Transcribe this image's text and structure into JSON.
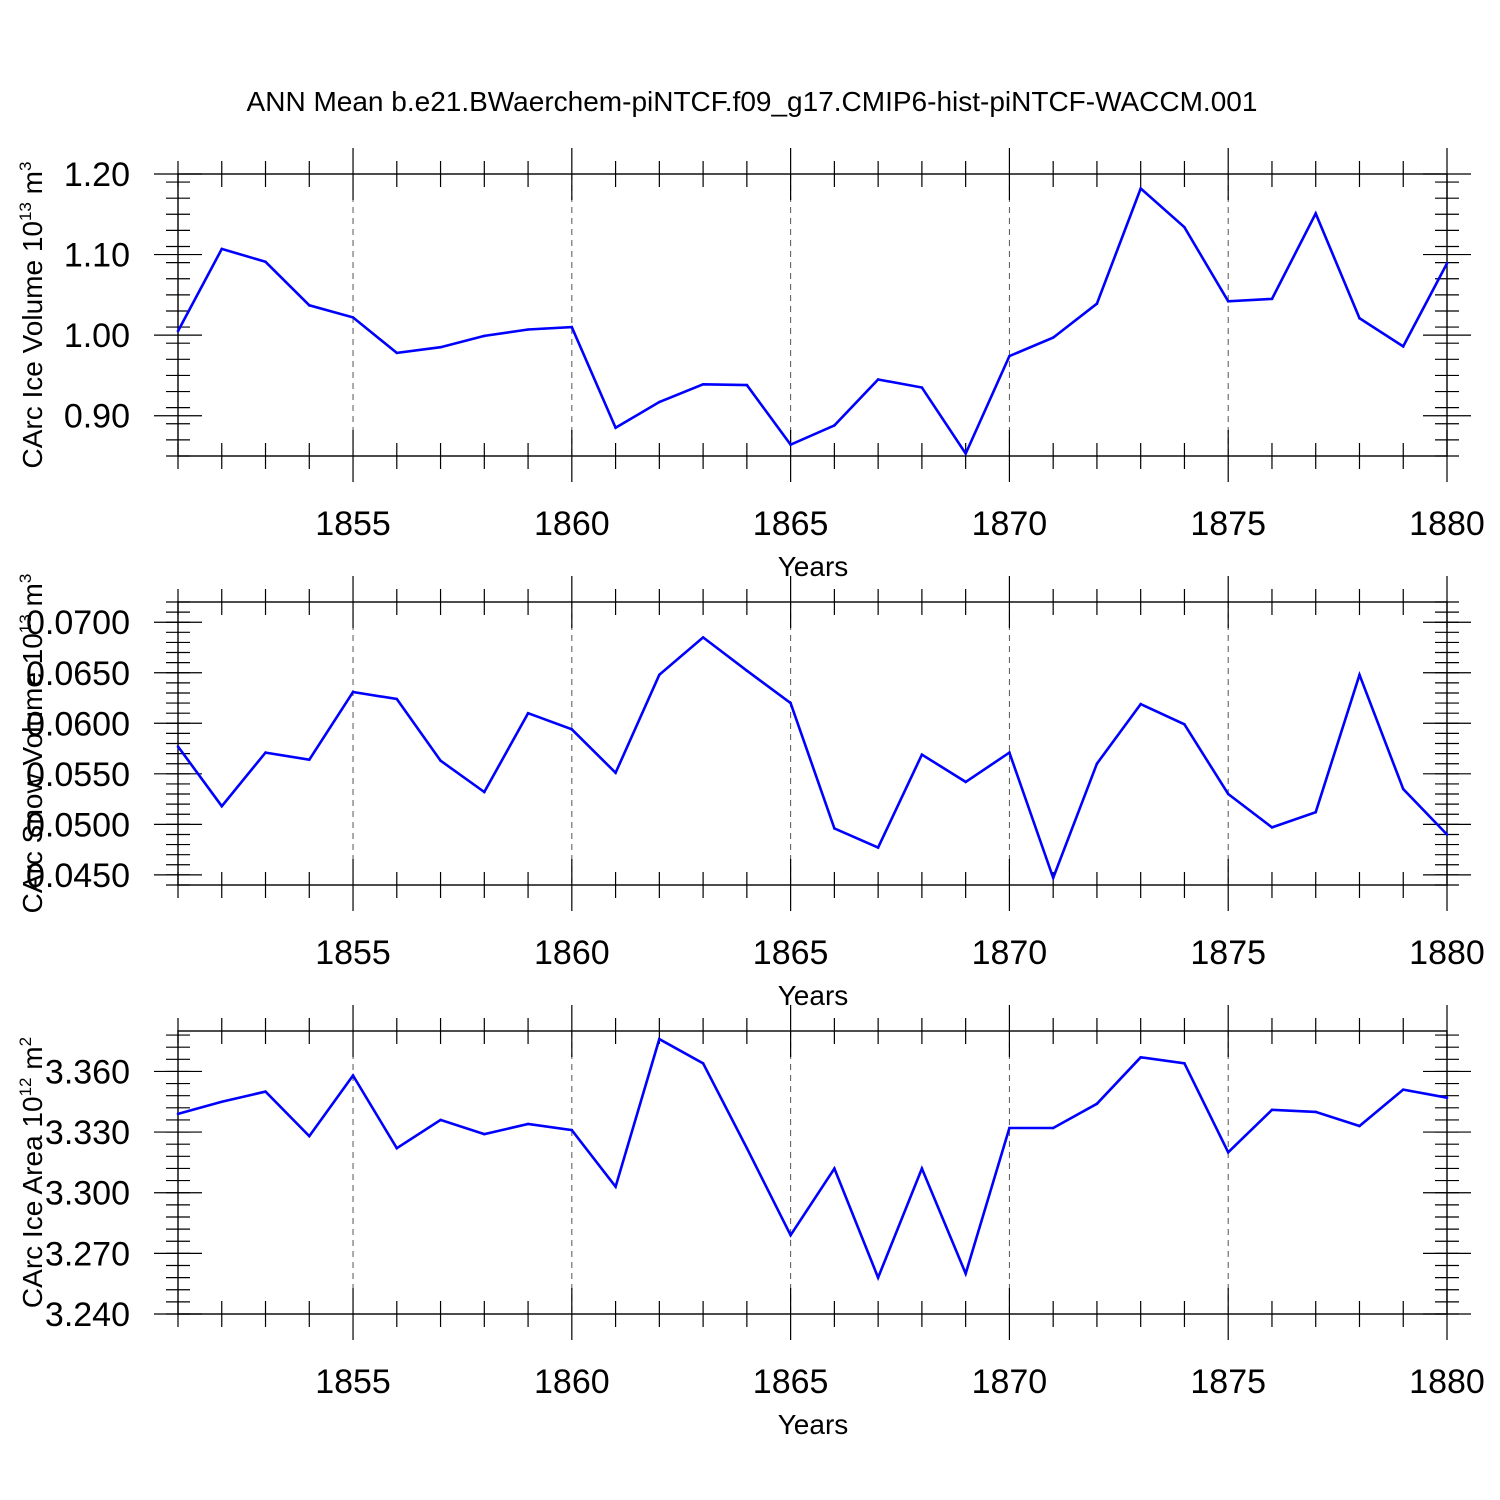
{
  "title": "ANN Mean b.e21.BWaerchem-piNTCF.f09_g17.CMIP6-hist-piNTCF-WACCM.001",
  "line_color": "#0000ff",
  "chart_data": [
    {
      "type": "line",
      "ylabel": "CArc Ice Volume 10",
      "ylabel_exp": "13",
      "ylabel_unit": " m",
      "ylabel_unit_exp": "3",
      "xlabel": "Years",
      "xlim": [
        1851,
        1880
      ],
      "ylim": [
        0.85,
        1.2
      ],
      "yticks": [
        0.9,
        1.0,
        1.1,
        1.2
      ],
      "ytick_labels": [
        "0.90",
        "1.00",
        "1.10",
        "1.20"
      ],
      "yminor_step": 0.02,
      "xticks": [
        1855,
        1860,
        1865,
        1870,
        1875,
        1880
      ],
      "xtick_labels": [
        "1855",
        "1860",
        "1865",
        "1870",
        "1875",
        "1880"
      ],
      "x": [
        1851,
        1852,
        1853,
        1854,
        1855,
        1856,
        1857,
        1858,
        1859,
        1860,
        1861,
        1862,
        1863,
        1864,
        1865,
        1866,
        1867,
        1868,
        1869,
        1870,
        1871,
        1872,
        1873,
        1874,
        1875,
        1876,
        1877,
        1878,
        1879,
        1880
      ],
      "values": [
        1.005,
        1.107,
        1.091,
        1.037,
        1.022,
        0.978,
        0.985,
        0.999,
        1.007,
        1.01,
        0.885,
        0.917,
        0.939,
        0.938,
        0.864,
        0.888,
        0.945,
        0.935,
        0.853,
        0.974,
        0.997,
        1.039,
        1.182,
        1.134,
        1.042,
        1.045,
        1.151,
        1.021,
        0.986,
        1.089
      ]
    },
    {
      "type": "line",
      "ylabel": "CArc Snow Volume 10",
      "ylabel_exp": "13",
      "ylabel_unit": " m",
      "ylabel_unit_exp": "3",
      "xlabel": "Years",
      "xlim": [
        1851,
        1880
      ],
      "ylim": [
        0.044,
        0.072
      ],
      "yticks": [
        0.045,
        0.05,
        0.055,
        0.06,
        0.065,
        0.07
      ],
      "ytick_labels": [
        "0.0450",
        "0.0500",
        "0.0550",
        "0.0600",
        "0.0650",
        "0.0700"
      ],
      "yminor_step": 0.001,
      "xticks": [
        1855,
        1860,
        1865,
        1870,
        1875,
        1880
      ],
      "xtick_labels": [
        "1855",
        "1860",
        "1865",
        "1870",
        "1875",
        "1880"
      ],
      "x": [
        1851,
        1852,
        1853,
        1854,
        1855,
        1856,
        1857,
        1858,
        1859,
        1860,
        1861,
        1862,
        1863,
        1864,
        1865,
        1866,
        1867,
        1868,
        1869,
        1870,
        1871,
        1872,
        1873,
        1874,
        1875,
        1876,
        1877,
        1878,
        1879,
        1880
      ],
      "values": [
        0.0577,
        0.0518,
        0.0571,
        0.0564,
        0.0631,
        0.0624,
        0.0563,
        0.0532,
        0.061,
        0.0594,
        0.0551,
        0.0648,
        0.0685,
        0.0652,
        0.062,
        0.0496,
        0.0477,
        0.0569,
        0.0542,
        0.0571,
        0.0447,
        0.056,
        0.0619,
        0.0599,
        0.053,
        0.0497,
        0.0512,
        0.0648,
        0.0535,
        0.049
      ]
    },
    {
      "type": "line",
      "ylabel": "CArc Ice Area 10",
      "ylabel_exp": "12",
      "ylabel_unit": " m",
      "ylabel_unit_exp": "2",
      "xlabel": "Years",
      "xlim": [
        1851,
        1880
      ],
      "ylim": [
        3.24,
        3.38
      ],
      "yticks": [
        3.24,
        3.27,
        3.3,
        3.33,
        3.36
      ],
      "ytick_labels": [
        "3.240",
        "3.270",
        "3.300",
        "3.330",
        "3.360"
      ],
      "yminor_step": 0.006,
      "xticks": [
        1855,
        1860,
        1865,
        1870,
        1875,
        1880
      ],
      "xtick_labels": [
        "1855",
        "1860",
        "1865",
        "1870",
        "1875",
        "1880"
      ],
      "x": [
        1851,
        1852,
        1853,
        1854,
        1855,
        1856,
        1857,
        1858,
        1859,
        1860,
        1861,
        1862,
        1863,
        1864,
        1865,
        1866,
        1867,
        1868,
        1869,
        1870,
        1871,
        1872,
        1873,
        1874,
        1875,
        1876,
        1877,
        1878,
        1879,
        1880
      ],
      "values": [
        3.339,
        3.345,
        3.35,
        3.328,
        3.358,
        3.322,
        3.336,
        3.329,
        3.334,
        3.331,
        3.303,
        3.376,
        3.364,
        3.322,
        3.279,
        3.312,
        3.258,
        3.312,
        3.26,
        3.332,
        3.332,
        3.344,
        3.367,
        3.364,
        3.32,
        3.341,
        3.34,
        3.333,
        3.351,
        3.347
      ]
    }
  ]
}
